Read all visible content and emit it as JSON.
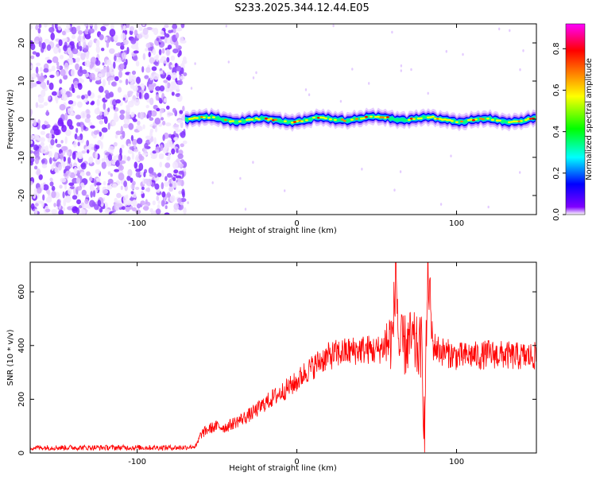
{
  "figure_title": "S233.2025.344.12.44.E05",
  "chart_data": [
    {
      "type": "heatmap",
      "title": "S233.2025.344.12.44.E05",
      "xlabel": "Height of straight line (km)",
      "ylabel": "Frequency (Hz)",
      "xlim": [
        -167,
        150
      ],
      "ylim": [
        -25,
        25
      ],
      "xticks": [
        -100,
        0,
        100
      ],
      "yticks": [
        -20,
        -10,
        0,
        10,
        20
      ],
      "noise_region_x": [
        -167,
        -70
      ],
      "signal_region_x": [
        -70,
        150
      ],
      "signal_center_frequency_hz": 0,
      "colorbar": {
        "label": "Normalized spectral amplitude",
        "range": [
          0,
          0.92
        ],
        "ticks": [
          0.0,
          0.2,
          0.4,
          0.6,
          0.8
        ],
        "colormap": [
          "#ffffff",
          "#8000ff",
          "#0000ff",
          "#00ffff",
          "#00ff00",
          "#ffff00",
          "#ff8000",
          "#ff0000",
          "#ff00ff"
        ]
      }
    },
    {
      "type": "line",
      "xlabel": "Height of straight line (km)",
      "ylabel": "SNR (10 * v/v)",
      "xlim": [
        -167,
        150
      ],
      "ylim": [
        0,
        710
      ],
      "xticks": [
        -100,
        0,
        100
      ],
      "yticks": [
        0,
        200,
        400,
        600
      ],
      "color": "#ff0000",
      "series": [
        {
          "name": "SNR",
          "x": [
            -167,
            -150,
            -130,
            -110,
            -90,
            -72,
            -63,
            -60,
            -55,
            -50,
            -45,
            -40,
            -35,
            -30,
            -25,
            -20,
            -15,
            -10,
            -5,
            0,
            5,
            10,
            15,
            20,
            25,
            30,
            35,
            40,
            45,
            50,
            55,
            60,
            62,
            64,
            66,
            68,
            70,
            72,
            74,
            76,
            78,
            80,
            82,
            85,
            90,
            95,
            100,
            105,
            110,
            115,
            120,
            125,
            130,
            135,
            140,
            145,
            150
          ],
          "y": [
            20,
            20,
            20,
            20,
            20,
            20,
            25,
            70,
            90,
            100,
            95,
            110,
            125,
            140,
            160,
            185,
            205,
            225,
            245,
            265,
            300,
            320,
            345,
            360,
            370,
            375,
            380,
            385,
            385,
            380,
            400,
            430,
            690,
            380,
            400,
            400,
            410,
            420,
            400,
            380,
            400,
            80,
            690,
            400,
            380,
            370,
            360,
            360,
            365,
            360,
            370,
            365,
            365,
            360,
            360,
            360,
            360
          ]
        }
      ]
    }
  ]
}
